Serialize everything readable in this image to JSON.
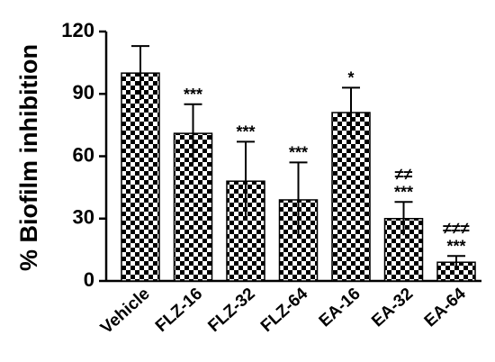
{
  "chart_data": {
    "type": "bar",
    "y_label": "% Biofilm inhibition",
    "categories": [
      "Vehicle",
      "FLZ-16",
      "FLZ-32",
      "FLZ-64",
      "EA-16",
      "EA-32",
      "EA-64"
    ],
    "values": [
      100,
      71,
      48,
      39,
      81,
      30,
      9
    ],
    "errors": [
      13,
      14,
      19,
      18,
      12,
      8,
      3
    ],
    "significance": [
      null,
      "***",
      "***",
      "***",
      "*",
      "***",
      "***"
    ],
    "significance_2": [
      null,
      null,
      null,
      null,
      null,
      "≠≠",
      "≠≠≠"
    ],
    "color": "#000000",
    "ylim": [
      0,
      120
    ],
    "yticks": [
      0,
      30,
      60,
      90,
      120
    ]
  }
}
